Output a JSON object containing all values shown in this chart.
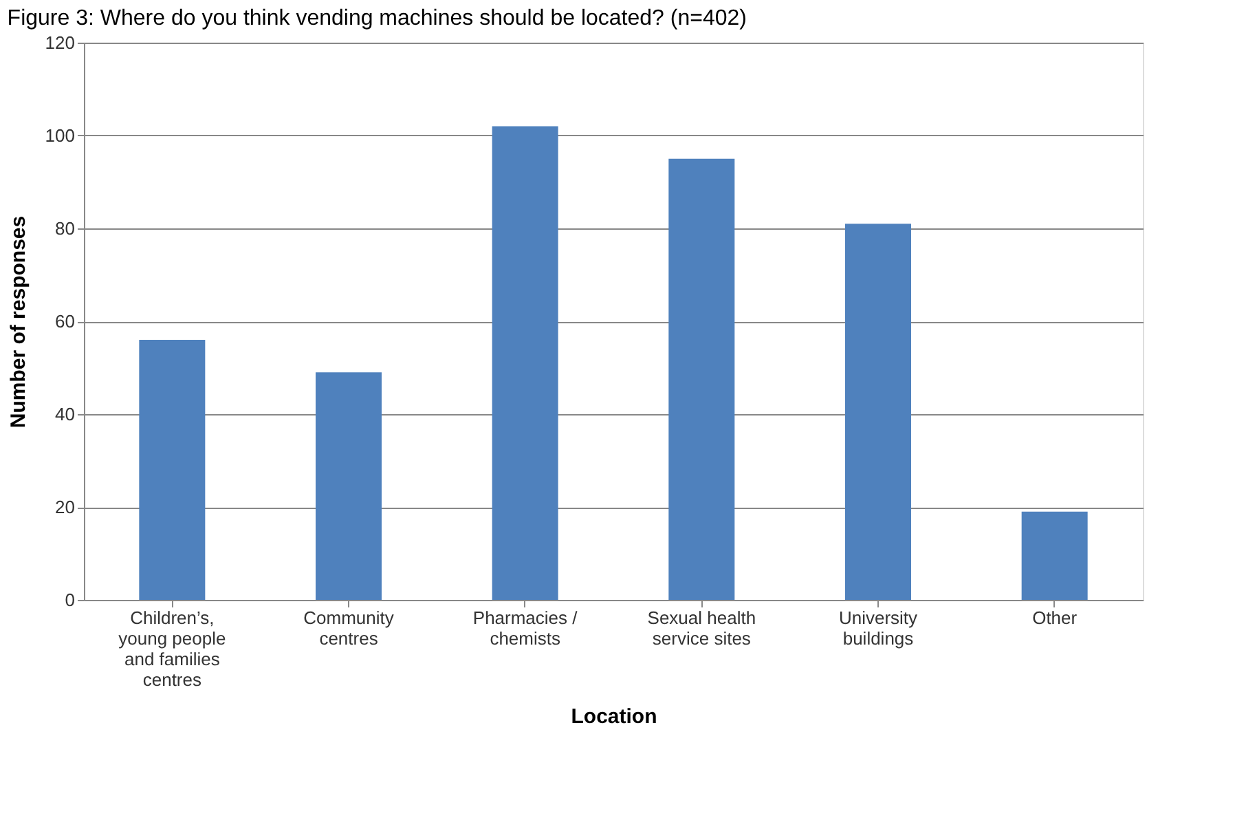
{
  "chart_data": {
    "type": "bar",
    "title": "Figure 3: Where do you think vending machines should be located? (n=402)",
    "xlabel": "Location",
    "ylabel": "Number of responses",
    "categories": [
      "Children’s, young people and families centres",
      "Community centres",
      "Pharmacies / chemists",
      "Sexual health service sites",
      "University buildings",
      "Other"
    ],
    "values": [
      56,
      49,
      102,
      95,
      81,
      19
    ],
    "color": "#4f81bd",
    "ylim": [
      0,
      120
    ],
    "yticks": [
      0,
      20,
      40,
      60,
      80,
      100,
      120
    ],
    "grid": "y",
    "legend": false
  }
}
